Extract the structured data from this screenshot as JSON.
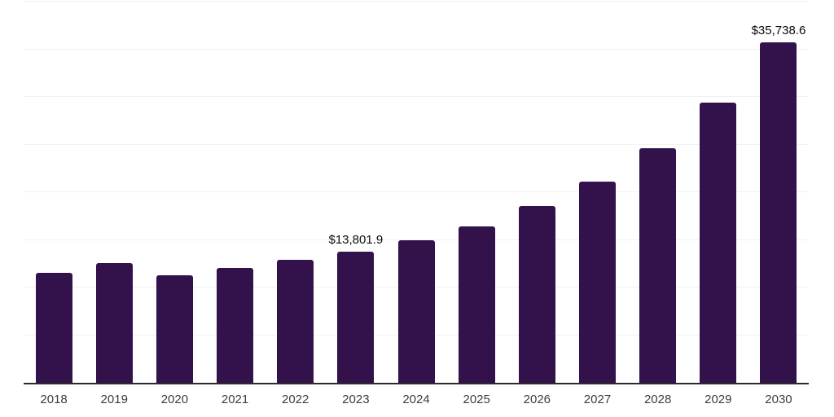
{
  "chart_data": {
    "type": "bar",
    "title": "",
    "xlabel": "",
    "ylabel": "",
    "categories": [
      "2018",
      "2019",
      "2020",
      "2021",
      "2022",
      "2023",
      "2024",
      "2025",
      "2026",
      "2027",
      "2028",
      "2029",
      "2030"
    ],
    "values": [
      11500,
      12550,
      11270,
      12040,
      12900,
      13801.9,
      14960,
      16430,
      18580,
      21070,
      24600,
      29410,
      35738.6
    ],
    "ylim": [
      0,
      40000
    ],
    "y_gridline_step": 5000,
    "grid": "horizontal",
    "legend": false,
    "y_axis_labels_visible": false,
    "data_labels": [
      {
        "category": "2023",
        "text": "$13,801.9"
      },
      {
        "category": "2030",
        "text": "$35,738.6"
      }
    ]
  },
  "style": {
    "background": "#ffffff",
    "bar_color": "#33114a",
    "axis_line_color": "#2b2b2b",
    "gridline_color": "#f1f1f1",
    "x_label_color": "#3d3d3d",
    "data_label_color": "#0b0b0b"
  }
}
